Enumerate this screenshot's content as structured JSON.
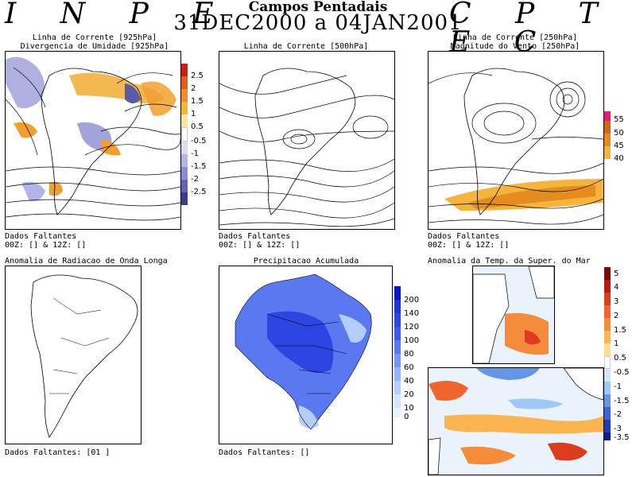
{
  "header": {
    "left_logo": "I N P E",
    "right_logo": "C P T E C",
    "title": "Campos Pentadais",
    "date_range": "31DEC2000 a 04JAN2001"
  },
  "panels": {
    "p1": {
      "title_line1": "Linha de Corrente [925hPa]",
      "title_line2": "Divergencia de Umidade [925hPa]",
      "missing_label": "Dados Faltantes",
      "missing_value": "00Z: [] & 12Z: []"
    },
    "p2": {
      "title_line1": "Linha de Corrente [500hPa]",
      "missing_label": "Dados Faltantes",
      "missing_value": "00Z: [] & 12Z: []"
    },
    "p3": {
      "title_line1": "Linha de Corrente [250hPa]",
      "title_line2": "Magnitude do Vento [250hPa]",
      "missing_label": "Dados Faltantes",
      "missing_value": "00Z: [] & 12Z: []"
    },
    "p4": {
      "title_line1": "Anomalia de Radiacao de Onda Longa",
      "missing_value": "Dados Faltantes: [01 ]"
    },
    "p5": {
      "title_line1": "Precipitacao Acumulada",
      "missing_value": "Dados Faltantes: []"
    },
    "p6": {
      "title_line1": "Anomalia da Temp. da Super. do Mar"
    }
  },
  "colorbars": {
    "humidity_divergence": {
      "labels": [
        "2.5",
        "2",
        "1.5",
        "1",
        "0.5",
        "-0.5",
        "-1",
        "-1.5",
        "-2",
        "-2.5"
      ],
      "colors": [
        "#c81e14",
        "#e85a1e",
        "#f08c28",
        "#f5b432",
        "#fde29b",
        "#ffffff",
        "#dcdcf5",
        "#b4b4e6",
        "#8c8cd2",
        "#6464b4",
        "#3c3c8c"
      ]
    },
    "wind_magnitude": {
      "labels": [
        "55",
        "50",
        "45",
        "40"
      ],
      "colors": [
        "#e6197d",
        "#d2641e",
        "#e68c1e",
        "#f5b43c"
      ]
    },
    "precipitation": {
      "labels": [
        "200",
        "140",
        "120",
        "100",
        "80",
        "60",
        "40",
        "20",
        "10",
        "0"
      ],
      "colors": [
        "#0a14c8",
        "#1e32d7",
        "#2d46e1",
        "#3c5aeb",
        "#5a78f0",
        "#7896f5",
        "#96b4fa",
        "#b4cdfc",
        "#d2e6fe",
        "#e6f2ff"
      ]
    },
    "sst_anomaly": {
      "labels": [
        "5",
        "4",
        "3",
        "2",
        "1.5",
        "1",
        "0.5",
        "-0.5",
        "-1",
        "-1.5",
        "-2",
        "-3",
        "-3.5"
      ],
      "colors": [
        "#7a0a0a",
        "#b41e14",
        "#dc3c1e",
        "#f0642d",
        "#f58c3c",
        "#fab450",
        "#fddc8c",
        "#ffffff",
        "#d2e6fa",
        "#a0c8f5",
        "#6496e6",
        "#3c64d2",
        "#1e3cb4",
        "#0a1e8c"
      ]
    }
  }
}
